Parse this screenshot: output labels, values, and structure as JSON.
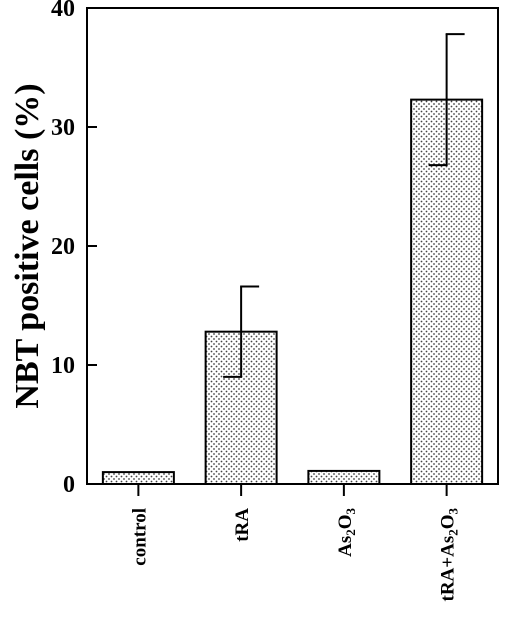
{
  "chart_data": {
    "type": "bar",
    "title": "",
    "xlabel": "",
    "ylabel": "NBT positive cells (%)",
    "ylim": [
      0,
      40
    ],
    "yticks": [
      0,
      10,
      20,
      30,
      40
    ],
    "grid": false,
    "legend": "none",
    "bar_fill": "dotted (stippled)",
    "categories": [
      {
        "label": "control",
        "parts": [
          {
            "t": "control"
          }
        ]
      },
      {
        "label": "tRA",
        "parts": [
          {
            "t": "tRA"
          }
        ]
      },
      {
        "label": "As2O3",
        "parts": [
          {
            "t": "As"
          },
          {
            "t": "2",
            "sub": true
          },
          {
            "t": "O"
          },
          {
            "t": "3",
            "sub": true
          }
        ]
      },
      {
        "label": "tRA+As2O3",
        "parts": [
          {
            "t": "tRA+As"
          },
          {
            "t": "2",
            "sub": true
          },
          {
            "t": "O"
          },
          {
            "t": "3",
            "sub": true
          }
        ]
      }
    ],
    "values": [
      1.0,
      12.8,
      1.1,
      32.3
    ],
    "errors": [
      null,
      3.8,
      null,
      5.5
    ]
  },
  "colors": {
    "bar_fill": "#ffffff",
    "bar_dot": "#444444",
    "stroke": "#000000"
  }
}
